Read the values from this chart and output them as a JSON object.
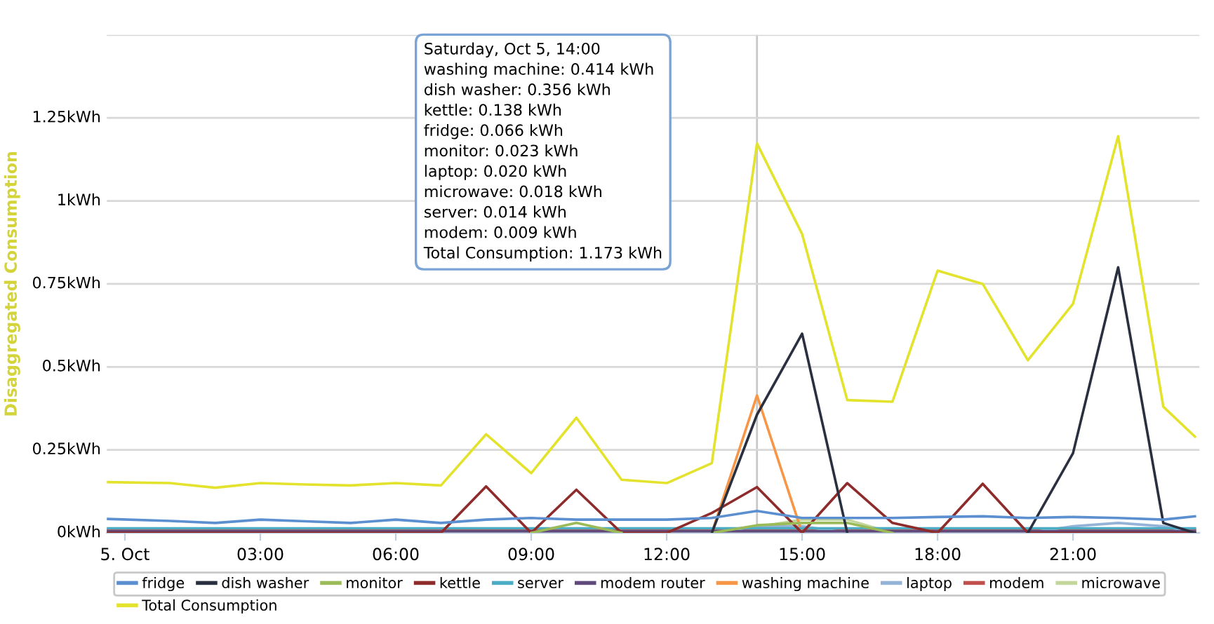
{
  "chart_data": {
    "type": "line",
    "ylabel": "Disaggregated Consumption",
    "x": [
      -0.4,
      1,
      2,
      3,
      4,
      5,
      6,
      7,
      8,
      9,
      10,
      11,
      12,
      13,
      14,
      15,
      16,
      17,
      18,
      19,
      20,
      21,
      22,
      23,
      23.7
    ],
    "series": [
      {
        "name": "fridge",
        "color": "#5b8fd0",
        "values": [
          0.042,
          0.036,
          0.03,
          0.04,
          0.035,
          0.03,
          0.04,
          0.03,
          0.04,
          0.045,
          0.04,
          0.04,
          0.04,
          0.045,
          0.066,
          0.045,
          0.045,
          0.045,
          0.048,
          0.05,
          0.045,
          0.048,
          0.045,
          0.04,
          0.05
        ]
      },
      {
        "name": "dish washer",
        "color": "#2b3040",
        "values": [
          null,
          null,
          null,
          null,
          null,
          null,
          null,
          null,
          null,
          null,
          null,
          null,
          null,
          0,
          0.356,
          0.6,
          0,
          null,
          null,
          null,
          0,
          0.24,
          0.8,
          0.03,
          0
        ]
      },
      {
        "name": "monitor",
        "color": "#9bbb59",
        "values": [
          null,
          null,
          null,
          null,
          null,
          null,
          null,
          null,
          null,
          0,
          0.03,
          0,
          null,
          0,
          0.023,
          0.03,
          0.03,
          0,
          null,
          null,
          null,
          null,
          null,
          null,
          null
        ]
      },
      {
        "name": "kettle",
        "color": "#8e2b2b",
        "values": [
          0,
          0,
          0,
          0,
          0,
          0,
          0,
          0,
          0.14,
          0,
          0.13,
          0,
          0,
          0.06,
          0.138,
          0,
          0.15,
          0.03,
          0,
          0.148,
          0,
          0,
          0,
          0,
          0
        ]
      },
      {
        "name": "server",
        "color": "#4bacc6",
        "values": [
          0.014,
          0.014,
          0.014,
          0.014,
          0.014,
          0.014,
          0.014,
          0.014,
          0.014,
          0.014,
          0.014,
          0.014,
          0.014,
          0.014,
          0.014,
          0.014,
          0.014,
          0.014,
          0.014,
          0.014,
          0.014,
          0.014,
          0.014,
          0.014,
          0.014
        ]
      },
      {
        "name": "modem router",
        "color": "#604a7b",
        "values": [
          0.005,
          0.005,
          0.005,
          0.005,
          0.005,
          0.005,
          0.005,
          0.005,
          0.005,
          0.005,
          0.005,
          0.005,
          0.005,
          0.005,
          0.005,
          0.005,
          0.005,
          0.005,
          0.005,
          0.005,
          0.005,
          0.005,
          0.005,
          0.005,
          0.005
        ]
      },
      {
        "name": "washing machine",
        "color": "#f79646",
        "values": [
          null,
          null,
          null,
          null,
          null,
          null,
          null,
          null,
          null,
          null,
          null,
          null,
          null,
          0,
          0.414,
          0,
          null,
          null,
          null,
          null,
          null,
          null,
          null,
          null,
          null
        ]
      },
      {
        "name": "laptop",
        "color": "#95b3d7",
        "values": [
          null,
          null,
          null,
          null,
          null,
          null,
          null,
          null,
          null,
          null,
          null,
          null,
          null,
          0,
          0.02,
          0.02,
          0,
          null,
          null,
          null,
          0,
          0.02,
          0.03,
          0.02,
          0
        ]
      },
      {
        "name": "modem",
        "color": "#c0504d",
        "values": [
          0.009,
          0.009,
          0.009,
          0.009,
          0.009,
          0.009,
          0.009,
          0.009,
          0.009,
          0.009,
          0.009,
          0.009,
          0.009,
          0.009,
          0.009,
          0.009,
          0.009,
          0.009,
          0.009,
          0.009,
          0.009,
          0.009,
          0.009,
          0.009,
          0.009
        ]
      },
      {
        "name": "microwave",
        "color": "#c3d69b",
        "values": [
          null,
          null,
          null,
          null,
          null,
          null,
          null,
          null,
          null,
          null,
          null,
          null,
          null,
          0,
          0.018,
          0.04,
          0.04,
          0,
          null,
          null,
          null,
          null,
          null,
          null,
          null
        ]
      },
      {
        "name": "Total Consumption",
        "color": "#e3e32e",
        "values": [
          0.153,
          0.15,
          0.136,
          0.15,
          0.146,
          0.143,
          0.15,
          0.143,
          0.297,
          0.18,
          0.347,
          0.16,
          0.15,
          0.21,
          1.173,
          0.9,
          0.4,
          0.395,
          0.79,
          0.75,
          0.52,
          0.69,
          1.195,
          0.38,
          0.29
        ]
      }
    ],
    "xlim": [
      -0.4,
      23.8
    ],
    "xticks": [
      {
        "value": 0,
        "label": "5. Oct"
      },
      {
        "value": 3,
        "label": "03:00"
      },
      {
        "value": 6,
        "label": "06:00"
      },
      {
        "value": 9,
        "label": "09:00"
      },
      {
        "value": 12,
        "label": "12:00"
      },
      {
        "value": 15,
        "label": "15:00"
      },
      {
        "value": 18,
        "label": "18:00"
      },
      {
        "value": 21,
        "label": "21:00"
      }
    ],
    "ylim": [
      0,
      1.5
    ],
    "yticks": [
      {
        "value": 0,
        "label": "0kWh"
      },
      {
        "value": 0.25,
        "label": "0.25kWh"
      },
      {
        "value": 0.5,
        "label": "0.5kWh"
      },
      {
        "value": 0.75,
        "label": "0.75kWh"
      },
      {
        "value": 1,
        "label": "1kWh"
      },
      {
        "value": 1.25,
        "label": "1.25kWh"
      },
      {
        "value": 1.5,
        "label": null
      }
    ],
    "ref_lines": [
      {
        "axis": "x",
        "value": 14,
        "color": "#c8c8c8"
      }
    ],
    "annotations": [
      "Saturday, Oct 5, 14:00",
      "washing machine: 0.414 kWh",
      "dish washer: 0.356 kWh",
      "kettle: 0.138 kWh",
      "fridge: 0.066 kWh",
      "monitor: 0.023 kWh",
      "laptop: 0.020 kWh",
      "microwave: 0.018 kWh",
      "server: 0.014 kWh",
      "modem: 0.009 kWh",
      "Total Consumption: 1.173 kWh"
    ],
    "grid": "y",
    "legend": "bottom",
    "marker": "none",
    "line_style": "solid"
  }
}
